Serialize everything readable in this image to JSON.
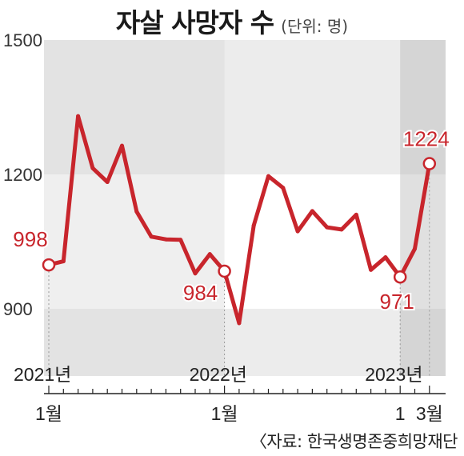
{
  "title": "자살 사망자 수",
  "unit": "(단위: 명)",
  "source": "〈자료: 한국생명존중희망재단",
  "colors": {
    "line": "#c8252c",
    "band_dark": "#e3e3e3",
    "band_light": "#efefef",
    "label": "#c8252c"
  },
  "chart_data": {
    "type": "line",
    "title": "자살 사망자 수",
    "ylabel": "",
    "ylim": [
      750,
      1500
    ],
    "yticks": [
      900,
      1200,
      1500
    ],
    "grid": false,
    "x_tick_labels": [
      {
        "index": 0,
        "label": "1월"
      },
      {
        "index": 12,
        "label": "1월"
      },
      {
        "index": 24,
        "label": "1"
      },
      {
        "index": 26,
        "label": "3월"
      }
    ],
    "year_labels": [
      {
        "index": 0,
        "label": "2021년"
      },
      {
        "index": 12,
        "label": "2022년"
      },
      {
        "index": 24,
        "label": "2023년"
      }
    ],
    "series": [
      {
        "values": [
          998,
          1006,
          1330,
          1214,
          1183,
          1264,
          1117,
          1061,
          1055,
          1054,
          979,
          1022,
          984,
          868,
          1086,
          1196,
          1170,
          1073,
          1118,
          1082,
          1077,
          1110,
          987,
          1015,
          971,
          1034,
          1224
        ]
      }
    ],
    "annotations": [
      {
        "index": 0,
        "value": 998,
        "label": "998",
        "position": "left"
      },
      {
        "index": 12,
        "value": 984,
        "label": "984",
        "position": "below-left"
      },
      {
        "index": 24,
        "value": 971,
        "label": "971",
        "position": "below"
      },
      {
        "index": 26,
        "value": 1224,
        "label": "1224",
        "position": "above"
      }
    ]
  }
}
